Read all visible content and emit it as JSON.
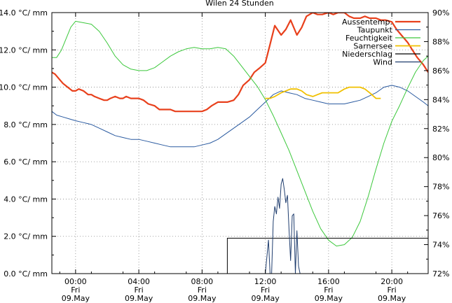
{
  "chart_data": {
    "type": "line",
    "title": "Wilen 24 Stunden",
    "xlabel": "",
    "ylabel": "",
    "y_left": {
      "min": 0,
      "max": 14,
      "step": 2,
      "unit_suffix": " °C/ mm",
      "tick_labels": [
        "0.0 °C/ mm",
        "2.0 °C/ mm",
        "4.0 °C/ mm",
        "6.0 °C/ mm",
        "8.0 °C/ mm",
        "10.0 °C/ mm",
        "12.0 °C/ mm",
        "14.0 °C/ mm"
      ]
    },
    "y_right": {
      "min": 72,
      "max": 90,
      "step": 2,
      "tick_labels": [
        "72%",
        "74%",
        "76%",
        "78%",
        "80%",
        "82%",
        "84%",
        "86%",
        "88%",
        "90%"
      ]
    },
    "x_range_hours": [
      -1.5,
      22.3
    ],
    "x_ticks": [
      {
        "hour": 0,
        "time": "00:00",
        "day": "Fri",
        "date": "09.May"
      },
      {
        "hour": 4,
        "time": "04:00",
        "day": "Fri",
        "date": "09.May"
      },
      {
        "hour": 8,
        "time": "08:00",
        "day": "Fri",
        "date": "09.May"
      },
      {
        "hour": 12,
        "time": "12:00",
        "day": "Fri",
        "date": "09.May"
      },
      {
        "hour": 16,
        "time": "16:00",
        "day": "Fri",
        "date": "09.May"
      },
      {
        "hour": 20,
        "time": "20:00",
        "day": "Fri",
        "date": "09.May"
      }
    ],
    "grid": true,
    "legend_position": "top-right",
    "series": [
      {
        "name": "Aussentemp.",
        "color": "#e8401c",
        "axis": "left",
        "width": 2.2,
        "x": [
          -1.5,
          -1.3,
          -1.0,
          -0.8,
          -0.5,
          -0.2,
          0,
          0.2,
          0.5,
          0.8,
          1.0,
          1.2,
          1.5,
          1.8,
          2.0,
          2.2,
          2.5,
          2.8,
          3.0,
          3.2,
          3.5,
          3.8,
          4.0,
          4.3,
          4.6,
          5.0,
          5.3,
          5.6,
          6.0,
          6.3,
          6.6,
          7.0,
          7.3,
          7.6,
          8.0,
          8.3,
          8.6,
          9.0,
          9.3,
          9.6,
          10.0,
          10.3,
          10.6,
          11.0,
          11.3,
          11.6,
          12.0,
          12.3,
          12.6,
          13.0,
          13.3,
          13.6,
          14.0,
          14.3,
          14.6,
          15.0,
          15.3,
          15.6,
          16.0,
          16.3,
          16.6,
          17.0,
          17.3,
          17.6,
          18.0,
          18.3,
          18.6,
          19.0,
          19.3,
          19.6,
          20.0,
          20.3,
          20.6,
          21.0,
          21.3,
          21.6,
          22.0,
          22.3
        ],
        "y": [
          10.8,
          10.7,
          10.4,
          10.2,
          10.0,
          9.8,
          9.8,
          9.9,
          9.8,
          9.6,
          9.6,
          9.5,
          9.4,
          9.3,
          9.3,
          9.4,
          9.5,
          9.4,
          9.4,
          9.5,
          9.4,
          9.4,
          9.4,
          9.3,
          9.1,
          9.0,
          8.8,
          8.8,
          8.8,
          8.7,
          8.7,
          8.7,
          8.7,
          8.7,
          8.7,
          8.8,
          9.0,
          9.2,
          9.2,
          9.2,
          9.3,
          9.6,
          10.1,
          10.4,
          10.8,
          11.0,
          11.3,
          12.3,
          13.3,
          12.8,
          13.1,
          13.6,
          12.8,
          13.2,
          13.8,
          14.0,
          13.9,
          13.9,
          14.0,
          13.9,
          14.0,
          14.0,
          13.8,
          13.7,
          13.7,
          13.8,
          13.7,
          13.7,
          13.6,
          13.6,
          13.5,
          13.1,
          12.8,
          12.4,
          12.0,
          11.6,
          11.2,
          10.8
        ]
      },
      {
        "name": "Taupunkt",
        "color": "#2a5aa0",
        "axis": "left",
        "width": 1.0,
        "x": [
          -1.5,
          -1.2,
          -0.8,
          -0.4,
          0,
          0.5,
          1.0,
          1.5,
          2.0,
          2.5,
          3.0,
          3.5,
          4.0,
          4.5,
          5.0,
          5.5,
          6.0,
          6.5,
          7.0,
          7.5,
          8.0,
          8.5,
          9.0,
          9.5,
          10.0,
          10.5,
          11.0,
          11.5,
          12.0,
          12.5,
          13.0,
          13.5,
          14.0,
          14.5,
          15.0,
          15.5,
          16.0,
          16.5,
          17.0,
          17.5,
          18.0,
          18.5,
          19.0,
          19.5,
          20.0,
          20.5,
          21.0,
          21.5,
          22.0,
          22.3
        ],
        "y": [
          8.7,
          8.5,
          8.4,
          8.3,
          8.2,
          8.1,
          8.0,
          7.8,
          7.6,
          7.4,
          7.3,
          7.2,
          7.2,
          7.1,
          7.0,
          6.9,
          6.8,
          6.8,
          6.8,
          6.8,
          6.9,
          7.0,
          7.2,
          7.5,
          7.8,
          8.1,
          8.4,
          8.8,
          9.2,
          9.6,
          9.8,
          9.7,
          9.6,
          9.4,
          9.3,
          9.2,
          9.1,
          9.1,
          9.1,
          9.2,
          9.3,
          9.5,
          9.7,
          10.0,
          10.1,
          10.0,
          9.8,
          9.5,
          9.2,
          9.0
        ]
      },
      {
        "name": "Feuchtigkeit",
        "color": "#3cc83c",
        "axis": "right",
        "width": 1.0,
        "x": [
          -1.5,
          -1.2,
          -0.9,
          -0.6,
          -0.3,
          0,
          0.5,
          1.0,
          1.5,
          2.0,
          2.5,
          3.0,
          3.5,
          4.0,
          4.5,
          5.0,
          5.5,
          6.0,
          6.5,
          7.0,
          7.5,
          8.0,
          8.5,
          9.0,
          9.5,
          10.0,
          10.5,
          11.0,
          11.5,
          12.0,
          12.5,
          13.0,
          13.5,
          14.0,
          14.5,
          15.0,
          15.5,
          16.0,
          16.5,
          17.0,
          17.5,
          18.0,
          18.5,
          19.0,
          19.5,
          20.0,
          20.5,
          21.0,
          21.5,
          22.0,
          22.3
        ],
        "y": [
          86.9,
          86.9,
          87.4,
          88.2,
          89.0,
          89.4,
          89.3,
          89.2,
          88.7,
          87.9,
          87.0,
          86.4,
          86.1,
          86.0,
          86.0,
          86.2,
          86.6,
          87.0,
          87.3,
          87.5,
          87.6,
          87.5,
          87.5,
          87.6,
          87.5,
          87.0,
          86.3,
          85.6,
          84.9,
          84.0,
          82.9,
          81.7,
          80.5,
          79.1,
          77.7,
          76.3,
          75.1,
          74.3,
          73.9,
          74.0,
          74.5,
          75.6,
          77.3,
          79.2,
          81.0,
          82.5,
          83.6,
          84.8,
          85.9,
          86.7,
          87.0
        ]
      },
      {
        "name": "Sarnersee",
        "color": "#f0c000",
        "axis": "left",
        "width": 1.8,
        "x": [
          12.0,
          12.3,
          12.6,
          13.0,
          13.3,
          13.6,
          14.0,
          14.3,
          14.6,
          15.0,
          15.3,
          15.6,
          16.0,
          16.3,
          16.6,
          17.0,
          17.3,
          17.6,
          18.0,
          18.3,
          18.6,
          19.0,
          19.3
        ],
        "y": [
          9.4,
          9.4,
          9.5,
          9.7,
          9.8,
          9.9,
          9.9,
          9.8,
          9.6,
          9.5,
          9.6,
          9.7,
          9.7,
          9.7,
          9.7,
          9.9,
          10.0,
          10.0,
          10.0,
          9.9,
          9.7,
          9.4,
          9.4
        ]
      },
      {
        "name": "Niederschlag",
        "color": "#000000",
        "axis": "left",
        "width": 1.0,
        "x": [
          9.45,
          9.6,
          9.6,
          22.3
        ],
        "y": [
          0.0,
          0.0,
          1.9,
          1.9
        ]
      },
      {
        "name": "Wind",
        "color": "#1f3d6e",
        "axis": "left",
        "width": 1.0,
        "x": [
          12.0,
          12.2,
          12.3,
          12.4,
          12.5,
          12.6,
          12.7,
          12.8,
          12.9,
          13.0,
          13.1,
          13.2,
          13.3,
          13.4,
          13.5,
          13.6,
          13.7,
          13.8,
          13.9,
          14.0,
          14.1,
          14.2
        ],
        "y": [
          0.0,
          1.8,
          0.0,
          0.0,
          2.8,
          3.6,
          3.2,
          4.1,
          3.5,
          4.8,
          5.1,
          4.5,
          3.8,
          4.2,
          2.4,
          0.7,
          3.1,
          3.2,
          0.0,
          2.3,
          0.4,
          0.0
        ]
      }
    ]
  }
}
